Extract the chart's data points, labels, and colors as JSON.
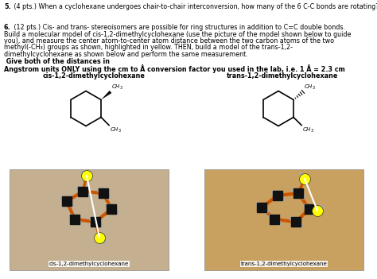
{
  "bg_color": "#ffffff",
  "q5_num": "5.",
  "q5_rest": " (4 pts.) When a cyclohexane undergoes chair-to-chair interconversion, how many of the 6 C-C bonds are rotating? Build a model and do the interconversion at home and watch each C-C bond carefully",
  "q6_num": "6.",
  "q6_normal": " (12 pts.) Cis- and trans- stereoisomers are possible for ring structures in addition to C=C double bonds. Build a molecular model of cis-1,2-dimethylcyclohexane (use the picture of the model shown below to guide you), and measure the center atom-to-center atom distance between the two carbon atoms of the two methyl(-CH₃) groups as shown, highlighted in yellow. THEN, build a model of the trans-1,2-dimethylcyclohexane as shown below and perform the same measurement.",
  "q6_bold": " Give both of the distances in Angstrom units ONLY using the cm to Å conversion factor you used in the lab, i.e. 1 Å = 2.3 cm",
  "label_cis": "cis-1,2-dimethylcyclohexane",
  "label_trans": "trans-1,2-dimethylcyclohexane",
  "label_cis_photo": "cis-1,2-dimethylcyclohexane",
  "label_trans_photo": "trans-1,2-dimethylcyclohexane",
  "photo_bg_left": "#c4b090",
  "photo_bg_right": "#c8a060",
  "figsize": [
    4.74,
    3.51
  ],
  "dpi": 100
}
